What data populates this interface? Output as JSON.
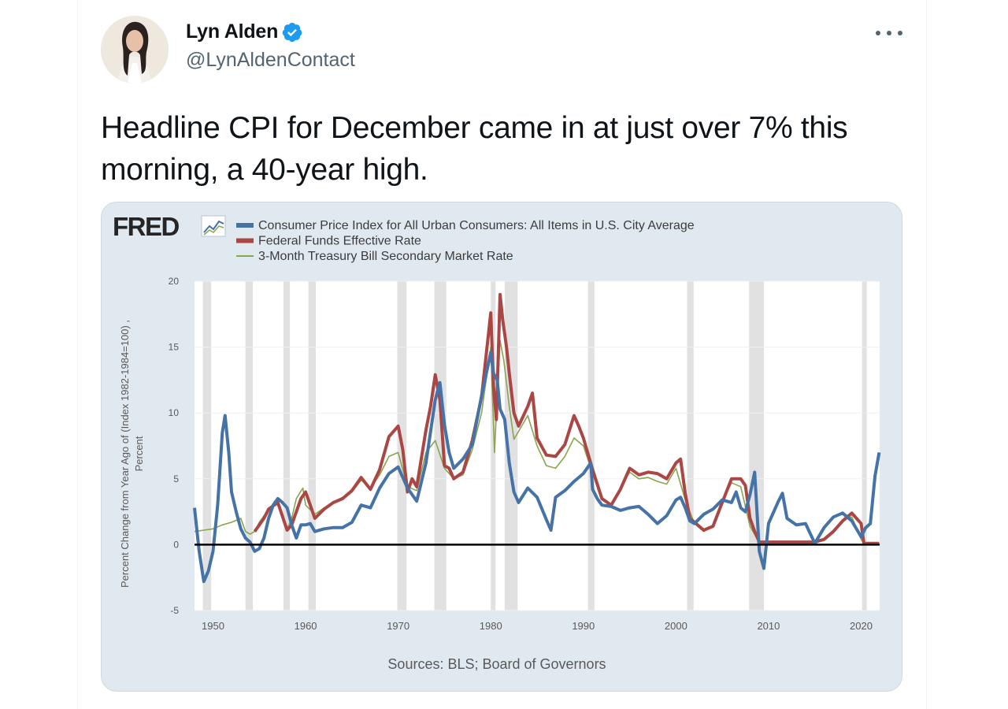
{
  "tweet": {
    "author_name": "Lyn Alden",
    "handle": "@LynAldenContact",
    "text": "Headline CPI for December came in at just over 7% this morning, a 40-year high.",
    "icons": {
      "verified": "verified-badge-icon",
      "more": "more-options-icon"
    },
    "colors": {
      "verified": "#1d9bf0",
      "text": "#0f1419",
      "secondary": "#536471"
    }
  },
  "chart_data": {
    "type": "line",
    "brand": "FRED",
    "legend_position": "top-left",
    "xlim": [
      1948,
      2022
    ],
    "ylim": [
      -5,
      20
    ],
    "x_ticks": [
      1950,
      1960,
      1970,
      1980,
      1990,
      2000,
      2010,
      2020
    ],
    "y_ticks": [
      -5,
      0,
      5,
      10,
      15,
      20
    ],
    "ylabel": "Percent Change from Year Ago of (Index 1982-1984=100) ,",
    "ylabel2": "Percent",
    "source": "Sources: BLS; Board of Governors",
    "recessions": [
      [
        1948.9,
        1949.8
      ],
      [
        1953.5,
        1954.3
      ],
      [
        1957.6,
        1958.3
      ],
      [
        1960.3,
        1961.1
      ],
      [
        1969.9,
        1970.9
      ],
      [
        1973.9,
        1975.2
      ],
      [
        1980.0,
        1980.5
      ],
      [
        1981.5,
        1982.9
      ],
      [
        1990.5,
        1991.2
      ],
      [
        2001.2,
        2001.9
      ],
      [
        2007.9,
        2009.5
      ],
      [
        2020.1,
        2020.4
      ]
    ],
    "series": [
      {
        "name": "Consumer Price Index for All Urban Consumers: All Items in U.S. City Average",
        "color": "#4572a7",
        "x": [
          1948,
          1948.5,
          1949,
          1949.5,
          1950,
          1950.5,
          1951,
          1951.3,
          1951.7,
          1952,
          1952.5,
          1953,
          1953.5,
          1954,
          1954.5,
          1955,
          1955.5,
          1956,
          1956.5,
          1957,
          1957.5,
          1958,
          1958.5,
          1959,
          1959.5,
          1960,
          1960.5,
          1961,
          1962,
          1963,
          1964,
          1965,
          1966,
          1967,
          1968,
          1969,
          1970,
          1971,
          1972,
          1973,
          1974,
          1974.5,
          1975,
          1975.5,
          1976,
          1977,
          1978,
          1979,
          1980,
          1980.3,
          1980.7,
          1981,
          1981.5,
          1982,
          1982.5,
          1983,
          1984,
          1985,
          1986,
          1986.5,
          1987,
          1988,
          1989,
          1990,
          1990.8,
          1991,
          1991.5,
          1992,
          1993,
          1994,
          1995,
          1996,
          1997,
          1998,
          1999,
          2000,
          2000.5,
          2001,
          2001.5,
          2002,
          2003,
          2004,
          2005,
          2006,
          2006.5,
          2007,
          2007.5,
          2008,
          2008.5,
          2009,
          2009.5,
          2010,
          2011,
          2011.5,
          2012,
          2013,
          2014,
          2015,
          2016,
          2017,
          2018,
          2019,
          2020,
          2020.5,
          2021,
          2021.5,
          2021.95
        ],
        "y": [
          2.8,
          -0.5,
          -2.8,
          -2,
          -0.5,
          3,
          8.5,
          9.8,
          7,
          4,
          2.5,
          1.2,
          0.5,
          0.2,
          -0.5,
          -0.3,
          0.5,
          2,
          3,
          3.5,
          3.2,
          2.8,
          1.5,
          0.5,
          1.5,
          1.5,
          1.6,
          1.0,
          1.2,
          1.3,
          1.3,
          1.7,
          3,
          2.8,
          4.3,
          5.4,
          5.9,
          4.3,
          3.3,
          6.2,
          11,
          12.3,
          9.1,
          7.0,
          5.8,
          6.5,
          7.6,
          11.3,
          14.6,
          13,
          12.5,
          10.3,
          9.5,
          6.2,
          4.0,
          3.2,
          4.3,
          3.6,
          1.9,
          1.1,
          3.6,
          4.1,
          4.8,
          5.4,
          6.2,
          4.2,
          3.5,
          3.0,
          2.9,
          2.6,
          2.8,
          2.9,
          2.3,
          1.6,
          2.2,
          3.4,
          3.6,
          2.8,
          1.8,
          1.6,
          2.3,
          2.7,
          3.4,
          3.2,
          4.0,
          2.8,
          2.5,
          3.8,
          5.5,
          -0.5,
          -1.8,
          1.6,
          3.2,
          3.9,
          2.0,
          1.5,
          1.6,
          0.1,
          1.3,
          2.1,
          2.4,
          1.8,
          0.6,
          1.3,
          1.6,
          5.2,
          7.0
        ]
      },
      {
        "name": "Federal Funds Effective Rate",
        "color": "#aa4643",
        "x": [
          1954.5,
          1955,
          1955.5,
          1956,
          1957,
          1958,
          1958.5,
          1959,
          1959.5,
          1960,
          1960.5,
          1961,
          1962,
          1963,
          1964,
          1965,
          1966,
          1967,
          1968,
          1969,
          1970,
          1970.5,
          1971,
          1971.5,
          1972,
          1973,
          1973.5,
          1974,
          1974.5,
          1975,
          1975.5,
          1976,
          1977,
          1978,
          1979,
          1980,
          1980.3,
          1980.6,
          1981,
          1981.3,
          1981.7,
          1982,
          1982.5,
          1983,
          1984,
          1984.5,
          1985,
          1986,
          1987,
          1988,
          1989,
          1989.5,
          1990,
          1991,
          1992,
          1993,
          1994,
          1995,
          1996,
          1997,
          1998,
          1999,
          2000,
          2000.5,
          2001,
          2001.5,
          2002,
          2003,
          2004,
          2005,
          2006,
          2007,
          2007.5,
          2008,
          2008.5,
          2009,
          2010,
          2015,
          2016,
          2017,
          2018,
          2019,
          2019.5,
          2020,
          2020.3,
          2021,
          2021.95
        ],
        "y": [
          1,
          1.5,
          2,
          2.7,
          3.2,
          1.1,
          1.5,
          2.5,
          3.5,
          4.0,
          3.0,
          2.0,
          2.7,
          3.2,
          3.5,
          4.1,
          5.1,
          4.2,
          5.7,
          8.2,
          9.0,
          7.2,
          4.0,
          5.0,
          4.4,
          8.7,
          10.5,
          12.9,
          11.0,
          6.0,
          5.8,
          5.0,
          5.5,
          7.9,
          11.2,
          17.6,
          12.0,
          9.5,
          19,
          17,
          15,
          13,
          10,
          9.0,
          10.5,
          11.5,
          8.1,
          6.8,
          6.7,
          7.6,
          9.8,
          9.0,
          8.1,
          5.7,
          3.5,
          3.0,
          4.2,
          5.8,
          5.3,
          5.5,
          5.4,
          5.0,
          6.2,
          6.5,
          3.9,
          2.0,
          1.7,
          1.1,
          1.4,
          3.2,
          5.0,
          5.0,
          4.5,
          2.0,
          1.0,
          0.2,
          0.2,
          0.2,
          0.4,
          1.0,
          1.8,
          2.4,
          2.0,
          1.6,
          0.1,
          0.1,
          0.1
        ]
      },
      {
        "name": "3-Month Treasury Bill Secondary Market Rate",
        "color": "#89a54e",
        "x": [
          1948,
          1949,
          1950,
          1951,
          1952,
          1953,
          1953.5,
          1954,
          1954.5,
          1955,
          1956,
          1957,
          1958,
          1958.5,
          1959,
          1959.7,
          1960,
          1961,
          1962,
          1963,
          1964,
          1965,
          1966,
          1967,
          1968,
          1969,
          1970,
          1971,
          1972,
          1973,
          1974,
          1975,
          1976,
          1977,
          1978,
          1979,
          1980,
          1980.4,
          1981,
          1981.4,
          1982,
          1982.5,
          1983,
          1984,
          1985,
          1986,
          1987,
          1988,
          1989,
          1990,
          1991,
          1992,
          1993,
          1994,
          1995,
          1996,
          1997,
          1998,
          1999,
          2000,
          2001,
          2002,
          2003,
          2004,
          2005,
          2006,
          2007,
          2008,
          2009,
          2010,
          2015,
          2017,
          2018,
          2019,
          2020,
          2020.3,
          2021,
          2021.95
        ],
        "y": [
          1.0,
          1.1,
          1.2,
          1.5,
          1.7,
          2.0,
          1.0,
          0.8,
          1.0,
          1.7,
          2.7,
          3.3,
          1.2,
          2.0,
          3.5,
          4.3,
          3.0,
          2.3,
          2.8,
          3.2,
          3.6,
          4.0,
          4.9,
          4.3,
          5.3,
          6.7,
          7.0,
          4.4,
          4.1,
          7.0,
          7.9,
          5.8,
          5.0,
          5.3,
          7.2,
          10.0,
          15.0,
          7.0,
          15.5,
          14.0,
          10.5,
          8.0,
          8.6,
          9.8,
          7.5,
          6.0,
          5.8,
          6.7,
          8.1,
          7.5,
          5.4,
          3.4,
          3.0,
          4.3,
          5.5,
          5.0,
          5.1,
          4.8,
          4.6,
          5.8,
          3.4,
          1.6,
          1.0,
          1.4,
          3.2,
          4.7,
          4.4,
          1.4,
          0.15,
          0.1,
          0.05,
          0.9,
          1.9,
          2.1,
          0.4,
          0.1,
          0.05,
          0.05
        ]
      }
    ]
  }
}
